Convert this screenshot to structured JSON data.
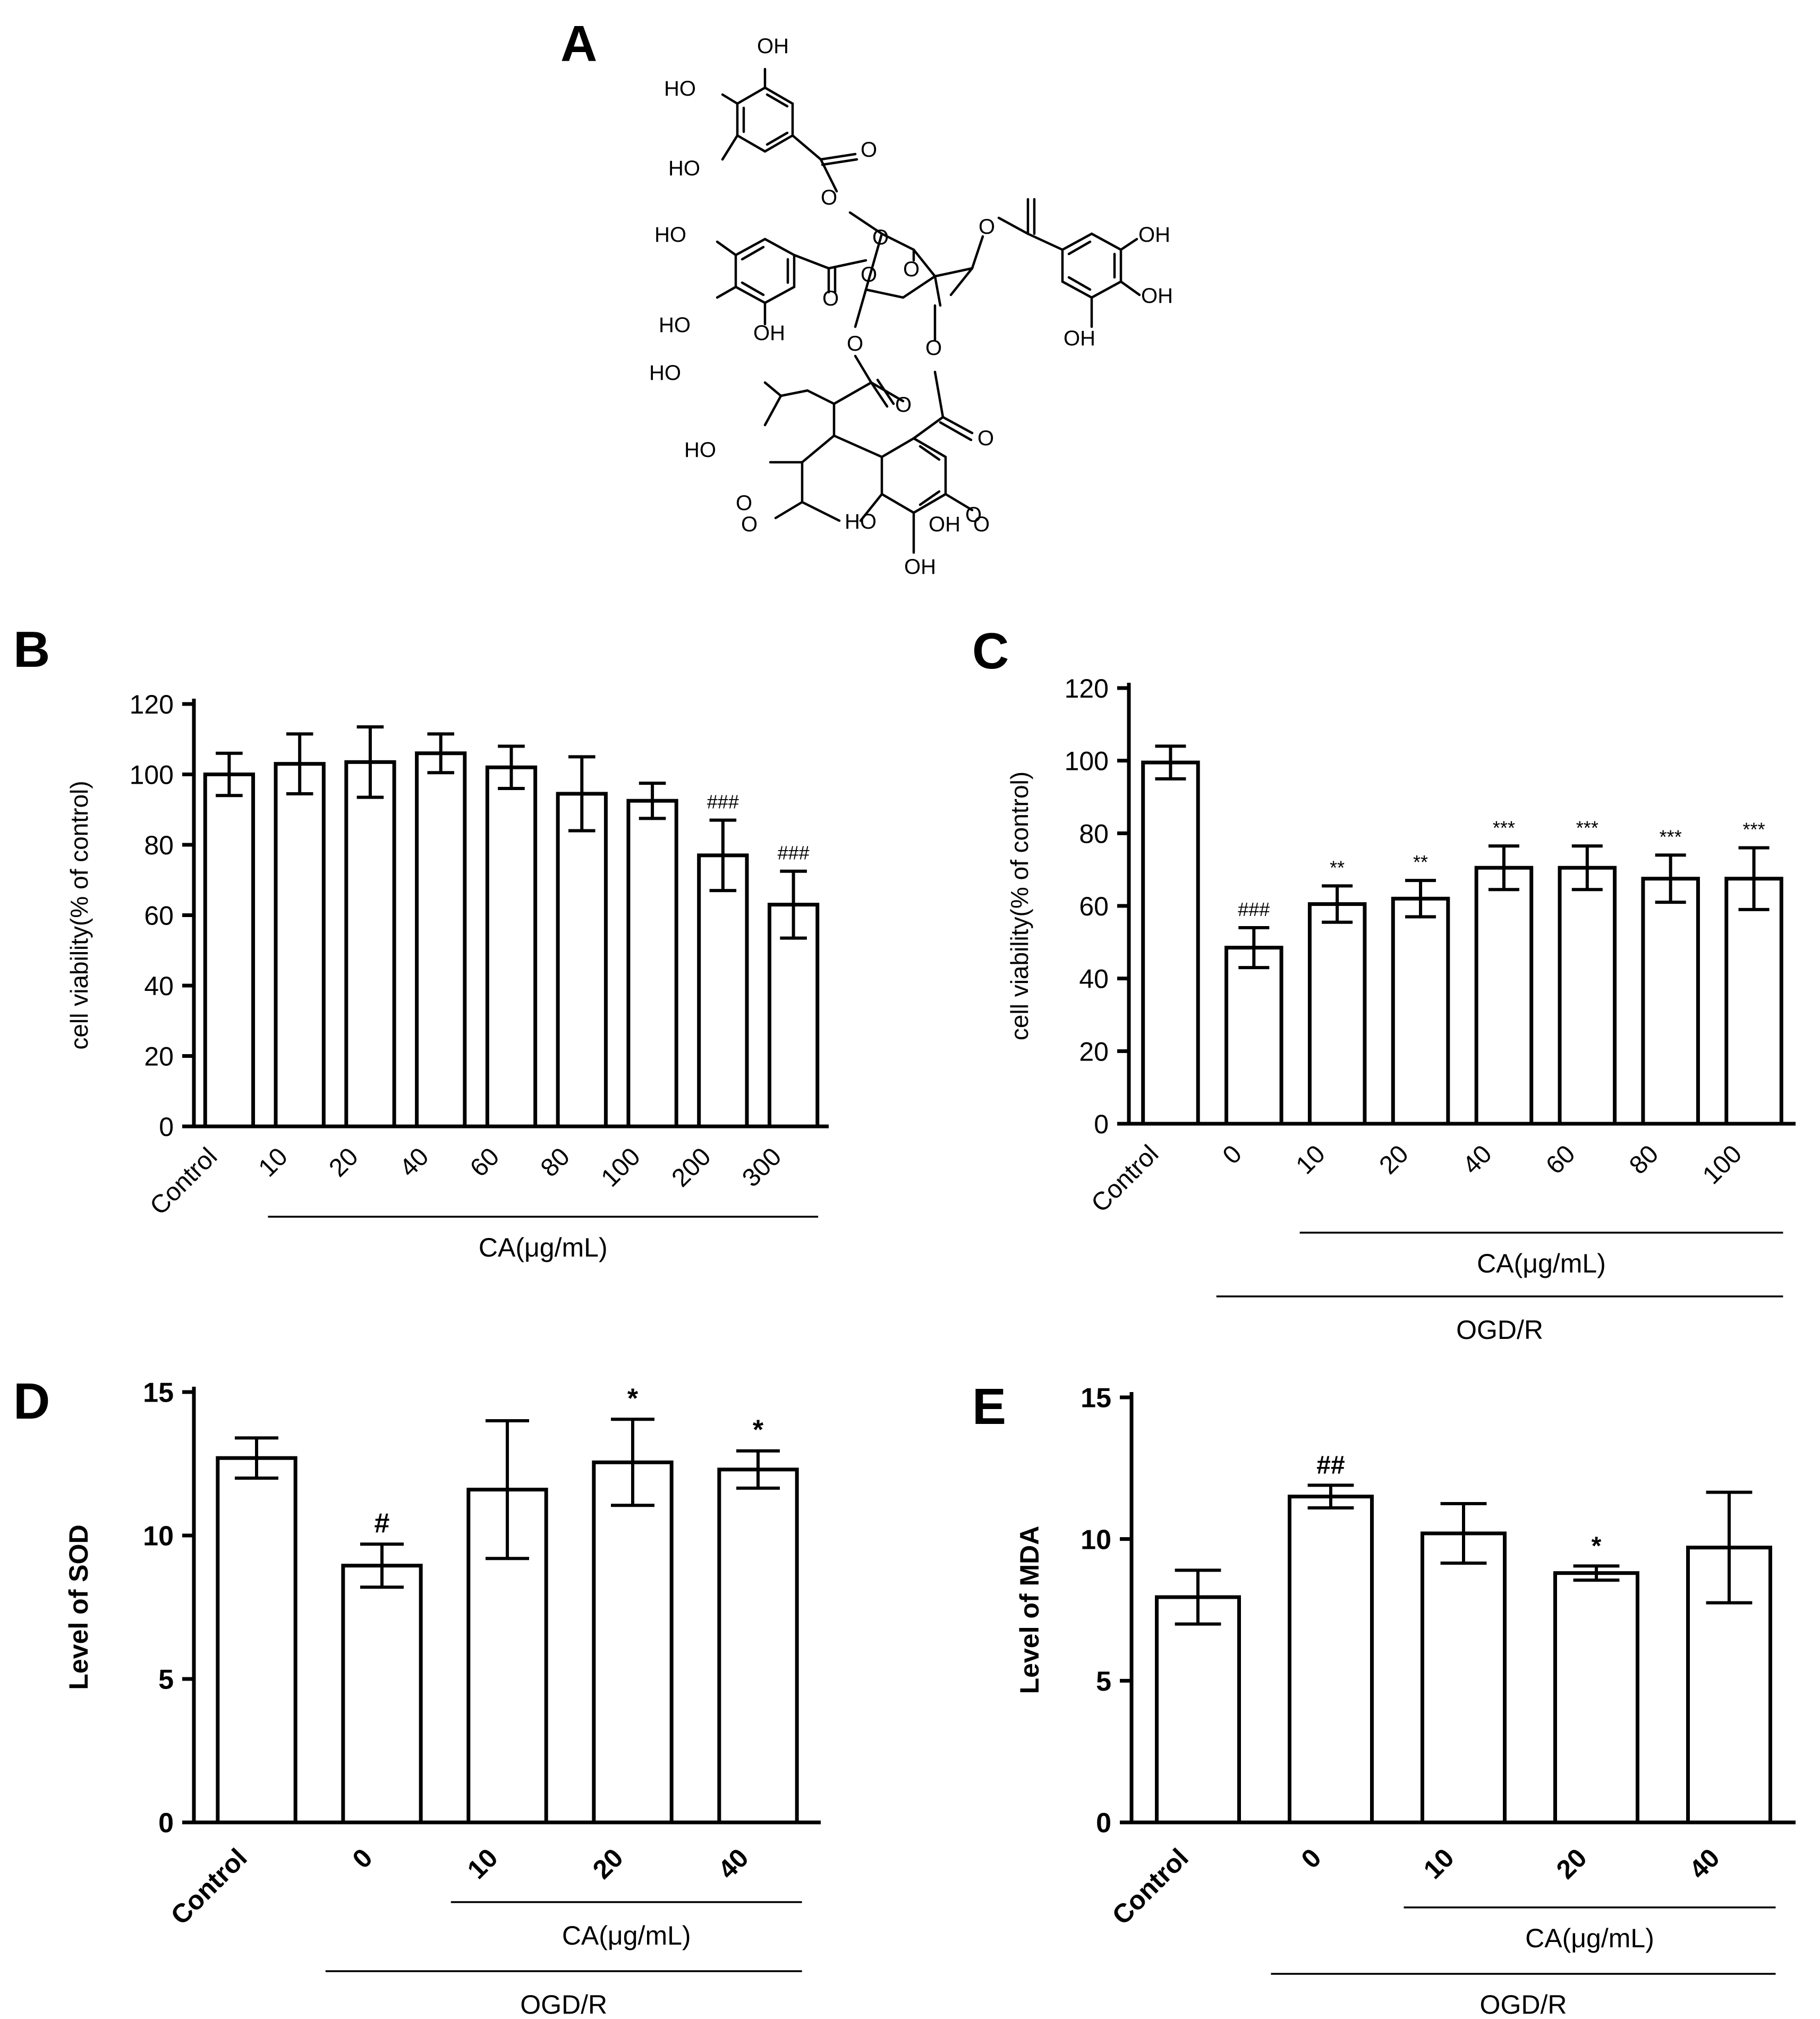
{
  "panels": {
    "A": "A",
    "B": "B",
    "C": "C",
    "D": "D",
    "E": "E"
  },
  "structure": {
    "labels": [
      "OH",
      "HO",
      "HO",
      "O",
      "O",
      "HO",
      "O",
      "O",
      "O",
      "O",
      "OH",
      "HO",
      "OH",
      "O",
      "OH",
      "HO",
      "OH",
      "O",
      "O",
      "O",
      "O",
      "HO",
      "O",
      "HO",
      "O",
      "O",
      "O",
      "OH",
      "OH"
    ]
  },
  "chart_data": [
    {
      "panel": "B",
      "type": "bar",
      "categories": [
        "Control",
        "10",
        "20",
        "40",
        "60",
        "80",
        "100",
        "200",
        "300"
      ],
      "values": [
        100,
        103,
        103.5,
        106,
        102,
        94.5,
        92.5,
        77,
        63
      ],
      "errors": [
        6,
        8.5,
        10,
        5.5,
        6,
        10.5,
        5,
        10,
        9.5
      ],
      "annotations": [
        "",
        "",
        "",
        "",
        "",
        "",
        "",
        "###",
        "###"
      ],
      "ylabel": "cell viability(% of control)",
      "yticks": [
        0,
        20,
        40,
        60,
        80,
        100,
        120
      ],
      "ylim": [
        0,
        120
      ],
      "group_labels": [
        "CA(μg/mL)"
      ]
    },
    {
      "panel": "C",
      "type": "bar",
      "categories": [
        "Control",
        "0",
        "10",
        "20",
        "40",
        "60",
        "80",
        "100"
      ],
      "values": [
        99.5,
        48.5,
        60.5,
        62,
        70.5,
        70.5,
        67.5,
        67.5
      ],
      "errors": [
        4.5,
        5.5,
        5,
        5,
        6,
        6,
        6.5,
        8.5
      ],
      "annotations": [
        "",
        "###",
        "**",
        "**",
        "***",
        "***",
        "***",
        "***"
      ],
      "ylabel": "cell viability(% of control)",
      "yticks": [
        0,
        20,
        40,
        60,
        80,
        100,
        120
      ],
      "ylim": [
        0,
        120
      ],
      "group_labels": [
        "CA(μg/mL)",
        "OGD/R"
      ]
    },
    {
      "panel": "D",
      "type": "bar",
      "categories": [
        "Control",
        "0",
        "10",
        "20",
        "40"
      ],
      "values": [
        12.7,
        8.95,
        11.6,
        12.55,
        12.3
      ],
      "errors": [
        0.7,
        0.75,
        2.4,
        1.5,
        0.65
      ],
      "annotations": [
        "",
        "#",
        "",
        "*",
        "*"
      ],
      "ylabel": "Level of SOD",
      "yticks": [
        0,
        5,
        10,
        15
      ],
      "ylim": [
        0,
        15
      ],
      "group_labels": [
        "CA(μg/mL)",
        "OGD/R"
      ]
    },
    {
      "panel": "E",
      "type": "bar",
      "categories": [
        "Control",
        "0",
        "10",
        "20",
        "40"
      ],
      "values": [
        7.95,
        11.5,
        10.2,
        8.8,
        9.7
      ],
      "errors": [
        0.95,
        0.4,
        1.05,
        0.25,
        1.95
      ],
      "annotations": [
        "",
        "##",
        "",
        "*",
        ""
      ],
      "ylabel": "Level of MDA",
      "yticks": [
        0,
        5,
        10,
        15
      ],
      "ylim": [
        0,
        15
      ],
      "group_labels": [
        "CA(μg/mL)",
        "OGD/R"
      ]
    }
  ]
}
